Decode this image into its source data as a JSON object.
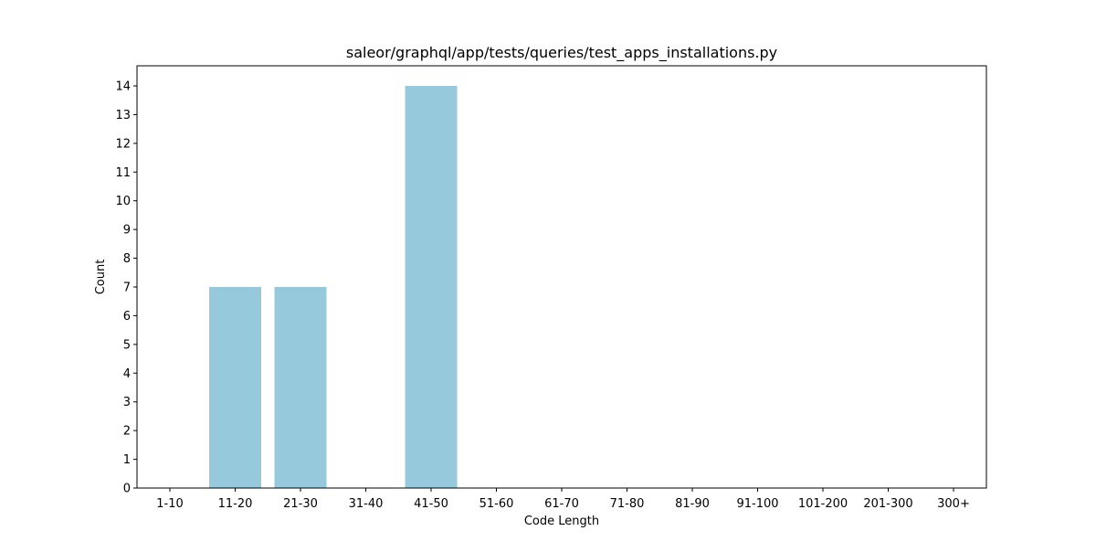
{
  "chart_data": {
    "type": "bar",
    "title": "saleor/graphql/app/tests/queries/test_apps_installations.py",
    "xlabel": "Code Length",
    "ylabel": "Count",
    "categories": [
      "1-10",
      "11-20",
      "21-30",
      "31-40",
      "41-50",
      "51-60",
      "61-70",
      "71-80",
      "81-90",
      "91-100",
      "101-200",
      "201-300",
      "300+"
    ],
    "values": [
      0,
      7,
      7,
      0,
      14,
      0,
      0,
      0,
      0,
      0,
      0,
      0,
      0
    ],
    "ylim": [
      0,
      14.7
    ],
    "yticks": [
      0,
      1,
      2,
      3,
      4,
      5,
      6,
      7,
      8,
      9,
      10,
      11,
      12,
      13,
      14
    ],
    "grid": false,
    "bar_color": "#96c9dc"
  }
}
